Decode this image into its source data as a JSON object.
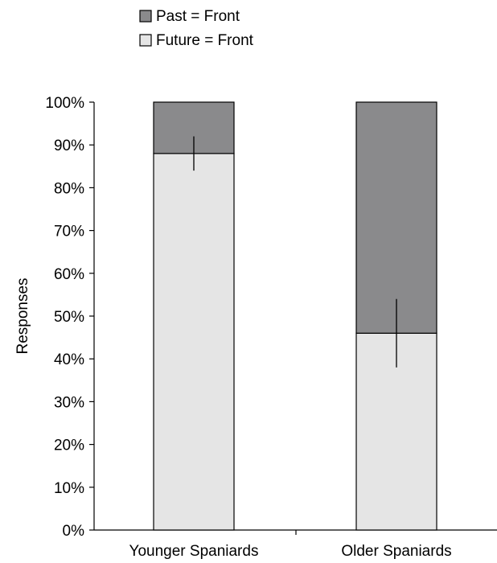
{
  "chart_data": {
    "type": "bar",
    "stacked": true,
    "percent": true,
    "categories": [
      "Younger Spaniards",
      "Older Spaniards"
    ],
    "series": [
      {
        "name": "Future = Front",
        "values": [
          88,
          46
        ],
        "error": [
          4,
          8
        ],
        "color": "#e5e5e5"
      },
      {
        "name": "Past = Front",
        "values": [
          12,
          54
        ],
        "color": "#8a8a8c"
      }
    ],
    "title": "",
    "xlabel": "",
    "ylabel": "Responses",
    "ylim": [
      0,
      100
    ],
    "yticks": [
      "0%",
      "10%",
      "20%",
      "30%",
      "40%",
      "50%",
      "60%",
      "70%",
      "80%",
      "90%",
      "100%"
    ],
    "grid": false,
    "legend": {
      "position": "top-left",
      "order": [
        "Past = Front",
        "Future = Front"
      ]
    }
  }
}
